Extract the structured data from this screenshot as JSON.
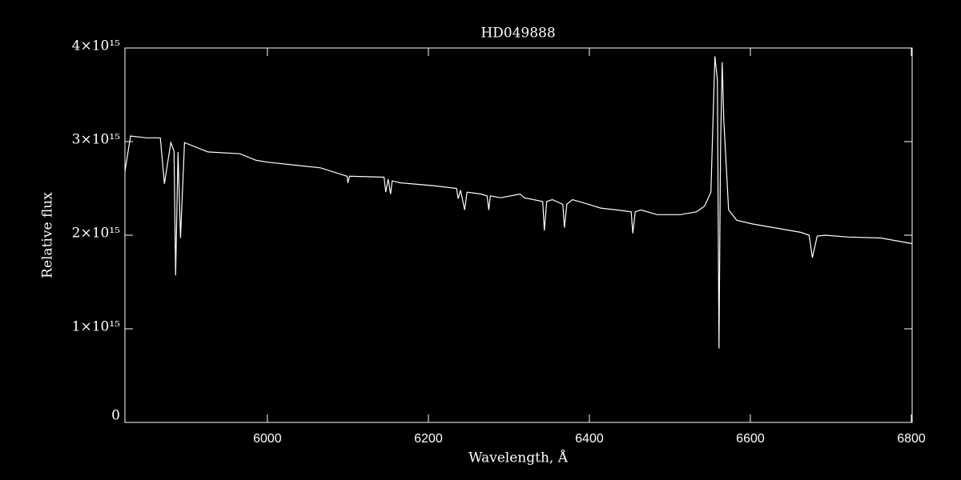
{
  "chart_data": {
    "type": "line",
    "title": "HD049888",
    "x_label": "Wavelength, Å",
    "y_label": "Relative flux",
    "xlim": [
      5823,
      6801
    ],
    "ylim": [
      0,
      4000000000000000.0
    ],
    "xticks": [
      6000,
      6200,
      6400,
      6600,
      6800
    ],
    "yticks": [
      0,
      {
        "value": 1000000000000000.0,
        "label": "1×10¹⁵"
      },
      {
        "value": 2000000000000000.0,
        "label": "2×10¹⁵"
      },
      {
        "value": 3000000000000000.0,
        "label": "3×10¹⁵"
      },
      {
        "value": 4000000000000000.0,
        "label": "4×10¹⁵"
      }
    ],
    "color": "#ffffff",
    "x": [
      5823,
      5830,
      5850,
      5867,
      5872,
      5880,
      5884,
      5886,
      5889,
      5892,
      5897,
      5926,
      5966,
      5986,
      6000,
      6066,
      6099,
      6100,
      6102,
      6145,
      6147,
      6150,
      6153,
      6155,
      6165,
      6205,
      6235,
      6237,
      6240,
      6245,
      6248,
      6265,
      6273,
      6275,
      6277,
      6290,
      6314,
      6319,
      6342,
      6344,
      6347,
      6354,
      6367,
      6369,
      6372,
      6379,
      6399,
      6414,
      6434,
      6452,
      6454,
      6457,
      6464,
      6484,
      6513,
      6533,
      6543,
      6551,
      6556,
      6559,
      6561,
      6563,
      6565,
      6567,
      6573,
      6583,
      6603,
      6663,
      6673,
      6677,
      6683,
      6693,
      6722,
      6762,
      6801
    ],
    "values": [
      2680000000000000.0,
      3060000000000000.0,
      3040000000000000.0,
      3040000000000000.0,
      2550000000000000.0,
      2990000000000000.0,
      2900000000000000.0,
      1570000000000000.0,
      2890000000000000.0,
      1970000000000000.0,
      2990000000000000.0,
      2890000000000000.0,
      2870000000000000.0,
      2800000000000000.0,
      2780000000000000.0,
      2720000000000000.0,
      2630000000000000.0,
      2560000000000000.0,
      2630000000000000.0,
      2620000000000000.0,
      2460000000000000.0,
      2600000000000000.0,
      2440000000000000.0,
      2580000000000000.0,
      2560000000000000.0,
      2530000000000000.0,
      2500000000000000.0,
      2390000000000000.0,
      2480000000000000.0,
      2270000000000000.0,
      2460000000000000.0,
      2440000000000000.0,
      2420000000000000.0,
      2270000000000000.0,
      2420000000000000.0,
      2400000000000000.0,
      2440000000000000.0,
      2400000000000000.0,
      2360000000000000.0,
      2050000000000000.0,
      2360000000000000.0,
      2380000000000000.0,
      2330000000000000.0,
      2080000000000000.0,
      2330000000000000.0,
      2380000000000000.0,
      2330000000000000.0,
      2290000000000000.0,
      2270000000000000.0,
      2250000000000000.0,
      2020000000000000.0,
      2250000000000000.0,
      2270000000000000.0,
      2220000000000000.0,
      2220000000000000.0,
      2250000000000000.0,
      2310000000000000.0,
      2460000000000000.0,
      3910000000000000.0,
      3660000000000000.0,
      790000000000000.0,
      2970000000000000.0,
      3850000000000000.0,
      3230000000000000.0,
      2270000000000000.0,
      2160000000000000.0,
      2120000000000000.0,
      2030000000000000.0,
      2000000000000000.0,
      1760000000000000.0,
      1990000000000000.0,
      2000000000000000.0,
      1980000000000000.0,
      1970000000000000.0,
      1910000000000000.0
    ]
  }
}
